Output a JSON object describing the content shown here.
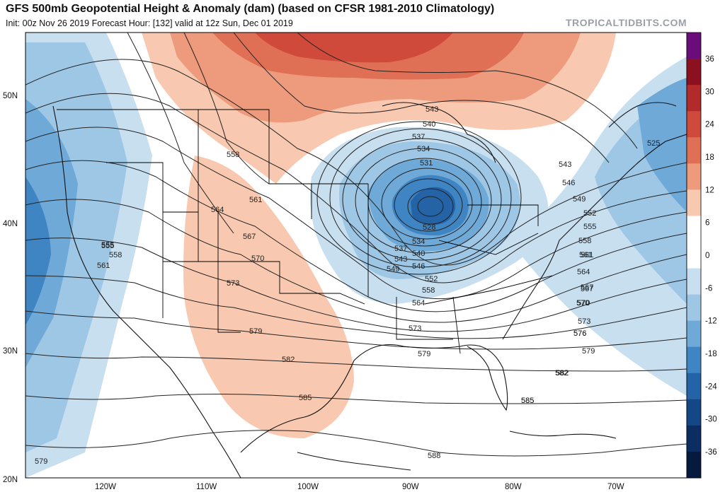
{
  "header": {
    "title": "GFS 500mb Geopotential Height & Anomaly (dam) (based on CFSR 1981-2010 Climatology)",
    "subtitle": "Init: 00z Nov 26 2019   Forecast Hour: [132]   valid at 12z Sun, Dec 01 2019",
    "watermark": "TROPICALTIDBITS.COM"
  },
  "colorbar": {
    "labels": [
      "36",
      "30",
      "24",
      "18",
      "12",
      "6",
      "0",
      "-6",
      "-12",
      "-18",
      "-24",
      "-30",
      "-36"
    ],
    "colors": [
      "#6a0d7a",
      "#8c1020",
      "#b32a2a",
      "#cf4a3a",
      "#e07055",
      "#ee9a7c",
      "#f8c9b0",
      "#ffffff",
      "#ffffff",
      "#c8dff0",
      "#9ec7e6",
      "#6fa9d7",
      "#3f85c3",
      "#2463a6",
      "#134786",
      "#0b2d62",
      "#061a40"
    ]
  },
  "axes": {
    "lat_labels": [
      "50N",
      "40N",
      "30N",
      "20N"
    ],
    "lon_labels": [
      "120W",
      "110W",
      "100W",
      "90W",
      "80W",
      "70W"
    ]
  },
  "contour_labels": [
    "543",
    "540",
    "537",
    "534",
    "531",
    "528",
    "534",
    "537",
    "540",
    "543",
    "546",
    "549",
    "552",
    "555",
    "558",
    "561",
    "564",
    "567",
    "570",
    "573",
    "576",
    "579",
    "582",
    "585",
    "588",
    "558",
    "561",
    "564",
    "567",
    "570",
    "573",
    "579",
    "582",
    "585",
    "555",
    "558",
    "561",
    "579",
    "525",
    "543",
    "546",
    "549",
    "552",
    "555",
    "558",
    "561",
    "564",
    "567",
    "570",
    "573",
    "576",
    "579",
    "582",
    "585"
  ]
}
